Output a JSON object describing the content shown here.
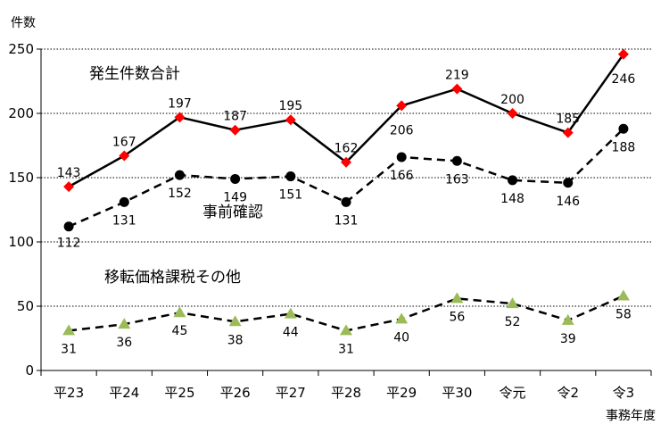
{
  "chart_data": {
    "type": "line",
    "y_unit_label": "件数",
    "x_unit_label": "事務年度",
    "categories": [
      "平23",
      "平24",
      "平25",
      "平26",
      "平27",
      "平28",
      "平29",
      "平30",
      "令元",
      "令2",
      "令3"
    ],
    "ylim": [
      0,
      250
    ],
    "y_ticks": [
      0,
      50,
      100,
      150,
      200,
      250
    ],
    "grid": true,
    "grid_style": "dotted horizontal",
    "series": [
      {
        "name": "発生件数合計",
        "values": [
          143,
          167,
          197,
          187,
          195,
          162,
          206,
          219,
          200,
          185,
          246
        ],
        "line_style": "solid",
        "line_color": "#000000",
        "marker": "diamond",
        "marker_color": "#ff0000"
      },
      {
        "name": "事前確認",
        "values": [
          112,
          131,
          152,
          149,
          151,
          131,
          166,
          163,
          148,
          146,
          188
        ],
        "line_style": "dashed",
        "line_color": "#000000",
        "marker": "circle",
        "marker_color": "#000000"
      },
      {
        "name": "移転価格課税その他",
        "values": [
          31,
          36,
          45,
          38,
          44,
          31,
          40,
          56,
          52,
          39,
          58
        ],
        "line_style": "dashed",
        "line_color": "#000000",
        "marker": "triangle",
        "marker_color": "#9bbb59"
      }
    ]
  }
}
